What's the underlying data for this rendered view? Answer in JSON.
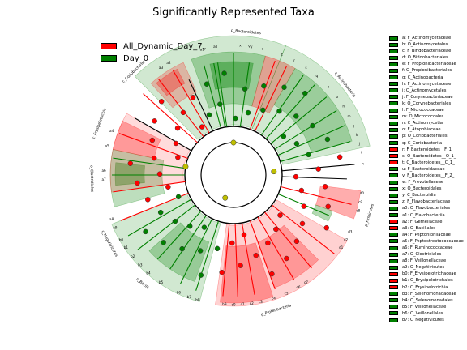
{
  "chart_data": {
    "type": "cladogram",
    "title": "Significantly Represented Taxa",
    "colors": {
      "All_Dynamic_Day_7": "#ff0000",
      "Day_0": "#008000"
    },
    "groups": [
      {
        "name": "All_Dynamic_Day_7",
        "color": "#ff0000"
      },
      {
        "name": "Day_0",
        "color": "#008000"
      }
    ],
    "clades": [
      {
        "label": "p_Bacteroidetes",
        "start": -15,
        "end": 25,
        "group": "Day_0"
      },
      {
        "label": "c_Actinobacteria",
        "start": 25,
        "end": 77,
        "group": "Day_0"
      },
      {
        "label": "p_Firmicutes",
        "start": 103,
        "end": 110,
        "group": "All_Dynamic_Day_7"
      },
      {
        "label": "p_Proteobacteria",
        "start": 140,
        "end": 185,
        "group": "All_Dynamic_Day_7"
      },
      {
        "label": "c_Bacilli",
        "start": 215,
        "end": 225,
        "group": "Day_0"
      },
      {
        "label": "o_Clostridiales",
        "start": 255,
        "end": 282,
        "group": "Day_0"
      },
      {
        "label": "c_Negativicutes",
        "start": 230,
        "end": 252,
        "group": "Day_0"
      },
      {
        "label": "c_Erysipelotrichia",
        "start": 282,
        "end": 300,
        "group": "All_Dynamic_Day_7"
      },
      {
        "label": "c_Coriobacteriia",
        "start": 312,
        "end": 320,
        "group": "All_Dynamic_Day_7"
      }
    ],
    "ring_labels": [
      {
        "label": "y",
        "angle": 8
      },
      {
        "label": "x",
        "angle": 3
      },
      {
        "label": "w",
        "angle": 347
      },
      {
        "label": "v",
        "angle": 7
      },
      {
        "label": "u",
        "angle": 13
      },
      {
        "label": "t",
        "angle": 22
      },
      {
        "label": "s",
        "angle": 34
      },
      {
        "label": "r",
        "angle": 28
      },
      {
        "label": "q",
        "angle": 40
      },
      {
        "label": "p",
        "angle": 47
      },
      {
        "label": "o",
        "angle": 53
      },
      {
        "label": "n",
        "angle": 58
      },
      {
        "label": "m",
        "angle": 63
      },
      {
        "label": "l",
        "angle": 68
      },
      {
        "label": "k",
        "angle": 72
      },
      {
        "label": "j",
        "angle": 76
      },
      {
        "label": "i",
        "angle": 80
      },
      {
        "label": "h",
        "angle": 85
      },
      {
        "label": "a0",
        "angle": 352
      },
      {
        "label": "a1",
        "angle": 346
      },
      {
        "label": "a2",
        "angle": 330
      },
      {
        "label": "a3",
        "angle": 326
      },
      {
        "label": "a4",
        "angle": 290
      },
      {
        "label": "a5",
        "angle": 283
      },
      {
        "label": "a6",
        "angle": 272
      },
      {
        "label": "a7",
        "angle": 268
      },
      {
        "label": "a8",
        "angle": 250
      },
      {
        "label": "a9",
        "angle": 246
      },
      {
        "label": "b0",
        "angle": 240
      },
      {
        "label": "b1",
        "angle": 236
      },
      {
        "label": "b2",
        "angle": 231
      },
      {
        "label": "b3",
        "angle": 226
      },
      {
        "label": "b4",
        "angle": 221
      },
      {
        "label": "b5",
        "angle": 214
      },
      {
        "label": "b6",
        "angle": 205
      },
      {
        "label": "b7",
        "angle": 200
      },
      {
        "label": "b8",
        "angle": 196
      },
      {
        "label": "b9",
        "angle": 184
      },
      {
        "label": "c0",
        "angle": 180
      },
      {
        "label": "c1",
        "angle": 176
      },
      {
        "label": "c2",
        "angle": 172
      },
      {
        "label": "c3",
        "angle": 168
      },
      {
        "label": "c4",
        "angle": 162
      },
      {
        "label": "c5",
        "angle": 156
      },
      {
        "label": "c6",
        "angle": 150
      },
      {
        "label": "c7",
        "angle": 146
      },
      {
        "label": "c8",
        "angle": 106
      },
      {
        "label": "c9",
        "angle": 102
      },
      {
        "label": "d0",
        "angle": 98
      },
      {
        "label": "d1",
        "angle": 124
      },
      {
        "label": "d2",
        "angle": 120
      },
      {
        "label": "d3",
        "angle": 116
      }
    ],
    "key_entries": [
      {
        "code": "a",
        "taxon": "F_Actinomycetaceae",
        "group": "Day_0"
      },
      {
        "code": "b",
        "taxon": "O_Actinomycetales",
        "group": "Day_0"
      },
      {
        "code": "c",
        "taxon": "F_Bifidobacteriaceae",
        "group": "Day_0"
      },
      {
        "code": "d",
        "taxon": "O_Bifidobacteriales",
        "group": "Day_0"
      },
      {
        "code": "e",
        "taxon": "F_Propionibacteriaceae",
        "group": "Day_0"
      },
      {
        "code": "f",
        "taxon": "O_Propionibacteriales",
        "group": "Day_0"
      },
      {
        "code": "g",
        "taxon": "C_Actinobacteria",
        "group": "Day_0"
      },
      {
        "code": "h",
        "taxon": "F_Actinomycetaceae",
        "group": "Day_0"
      },
      {
        "code": "i",
        "taxon": "O_Actinomycetales",
        "group": "Day_0"
      },
      {
        "code": "j",
        "taxon": "F_Corynebacteriaceae",
        "group": "Day_0"
      },
      {
        "code": "k",
        "taxon": "O_Corynebacteriales",
        "group": "Day_0"
      },
      {
        "code": "l",
        "taxon": "F_Micrococcaceae",
        "group": "Day_0"
      },
      {
        "code": "m",
        "taxon": "O_Micrococcales",
        "group": "Day_0"
      },
      {
        "code": "n",
        "taxon": "C_Actinomycetia",
        "group": "Day_0"
      },
      {
        "code": "o",
        "taxon": "F_Atopobiaceae",
        "group": "Day_0"
      },
      {
        "code": "p",
        "taxon": "O_Coriobacteriales",
        "group": "Day_0"
      },
      {
        "code": "q",
        "taxon": "C_Coriobacteriia",
        "group": "Day_0"
      },
      {
        "code": "r",
        "taxon": "F_Bacteroidetes__F_1_",
        "group": "All_Dynamic_Day_7"
      },
      {
        "code": "s",
        "taxon": "O_Bacteroidetes__O_1_",
        "group": "All_Dynamic_Day_7"
      },
      {
        "code": "t",
        "taxon": "C_Bacteroidetes__C_1_",
        "group": "All_Dynamic_Day_7"
      },
      {
        "code": "u",
        "taxon": "F_Bacteroidaceae",
        "group": "Day_0"
      },
      {
        "code": "v",
        "taxon": "F_Bacteroidetes__F_2_",
        "group": "Day_0"
      },
      {
        "code": "w",
        "taxon": "F_Prevotellaceae",
        "group": "Day_0"
      },
      {
        "code": "x",
        "taxon": "O_Bacteroidales",
        "group": "Day_0"
      },
      {
        "code": "y",
        "taxon": "C_Bacteroidia",
        "group": "Day_0"
      },
      {
        "code": "z",
        "taxon": "F_Flavobacteriaceae",
        "group": "Day_0"
      },
      {
        "code": "a0",
        "taxon": "O_Flavobacteriales",
        "group": "Day_0"
      },
      {
        "code": "a1",
        "taxon": "C_Flavobacteriia",
        "group": "Day_0"
      },
      {
        "code": "a2",
        "taxon": "F_Gemellaceae",
        "group": "All_Dynamic_Day_7"
      },
      {
        "code": "a3",
        "taxon": "O_Bacillales",
        "group": "All_Dynamic_Day_7"
      },
      {
        "code": "a4",
        "taxon": "F_Peptoniphilaceae",
        "group": "Day_0"
      },
      {
        "code": "a5",
        "taxon": "F_Peptostreptococcaceae",
        "group": "Day_0"
      },
      {
        "code": "a6",
        "taxon": "F_Ruminococcaceae",
        "group": "Day_0"
      },
      {
        "code": "a7",
        "taxon": "O_Clostridiales",
        "group": "Day_0"
      },
      {
        "code": "a8",
        "taxon": "F_Veillonellaceae",
        "group": "Day_0"
      },
      {
        "code": "a9",
        "taxon": "O_Negativicutes",
        "group": "Day_0"
      },
      {
        "code": "b0",
        "taxon": "F_Erysipelotrichaceae",
        "group": "All_Dynamic_Day_7"
      },
      {
        "code": "b1",
        "taxon": "O_Erysipelotrichales",
        "group": "All_Dynamic_Day_7"
      },
      {
        "code": "b2",
        "taxon": "C_Erysipelotrichia",
        "group": "All_Dynamic_Day_7"
      },
      {
        "code": "b3",
        "taxon": "F_Selenomonadaceae",
        "group": "Day_0"
      },
      {
        "code": "b4",
        "taxon": "O_Selenomonadales",
        "group": "Day_0"
      },
      {
        "code": "b5",
        "taxon": "F_Veillonellaceae",
        "group": "Day_0"
      },
      {
        "code": "b6",
        "taxon": "O_Veillonellales",
        "group": "Day_0"
      },
      {
        "code": "b7",
        "taxon": "C_Negativicutes",
        "group": "Day_0"
      }
    ]
  }
}
